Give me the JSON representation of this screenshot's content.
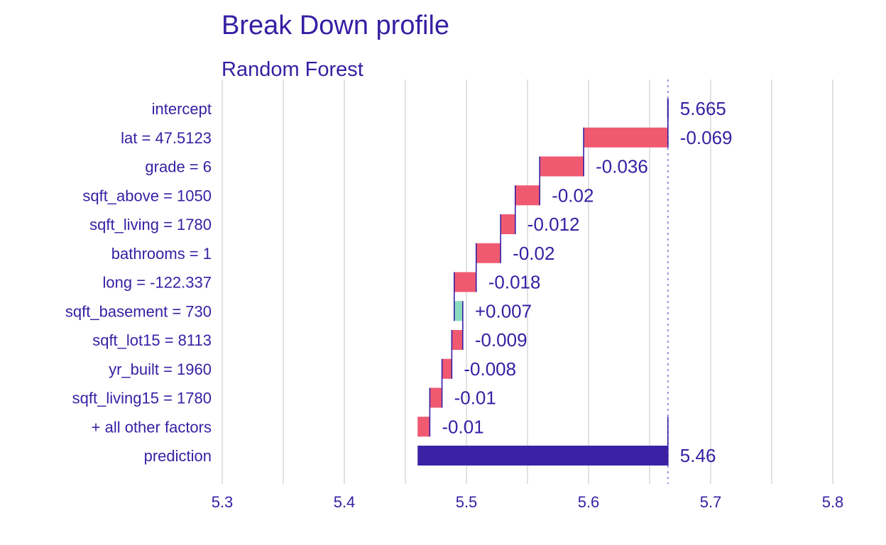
{
  "colors": {
    "text": "#371ea3",
    "negative": "#f05a71",
    "positive": "#8bdcbe",
    "prediction": "#371ea3",
    "grid": "#e2e2e2",
    "reference_line": "#9a90d6"
  },
  "chart_data": {
    "type": "bar",
    "title": "Break Down profile",
    "subtitle": "Random Forest",
    "xlabel": "",
    "ylabel": "",
    "xlim": [
      5.3,
      5.8
    ],
    "x_ticks": [
      5.3,
      5.4,
      5.5,
      5.6,
      5.7,
      5.8
    ],
    "x_tick_labels": [
      "5.3",
      "5.4",
      "5.5",
      "5.6",
      "5.7",
      "5.8"
    ],
    "grid": true,
    "reference_value": 5.665,
    "variables": [
      {
        "label": "intercept",
        "start": 5.665,
        "end": 5.665,
        "contribution": 5.665,
        "value_label": "5.665",
        "sign": "intercept"
      },
      {
        "label": "lat = 47.5123",
        "start": 5.665,
        "end": 5.596,
        "contribution": -0.069,
        "value_label": "-0.069",
        "sign": "negative"
      },
      {
        "label": "grade = 6",
        "start": 5.596,
        "end": 5.56,
        "contribution": -0.036,
        "value_label": "-0.036",
        "sign": "negative"
      },
      {
        "label": "sqft_above = 1050",
        "start": 5.56,
        "end": 5.54,
        "contribution": -0.02,
        "value_label": "-0.02",
        "sign": "negative"
      },
      {
        "label": "sqft_living = 1780",
        "start": 5.54,
        "end": 5.528,
        "contribution": -0.012,
        "value_label": "-0.012",
        "sign": "negative"
      },
      {
        "label": "bathrooms = 1",
        "start": 5.528,
        "end": 5.508,
        "contribution": -0.02,
        "value_label": "-0.02",
        "sign": "negative"
      },
      {
        "label": "long = -122.337",
        "start": 5.508,
        "end": 5.49,
        "contribution": -0.018,
        "value_label": "-0.018",
        "sign": "negative"
      },
      {
        "label": "sqft_basement = 730",
        "start": 5.49,
        "end": 5.497,
        "contribution": 0.007,
        "value_label": "+0.007",
        "sign": "positive"
      },
      {
        "label": "sqft_lot15 = 8113",
        "start": 5.497,
        "end": 5.488,
        "contribution": -0.009,
        "value_label": "-0.009",
        "sign": "negative"
      },
      {
        "label": "yr_built = 1960",
        "start": 5.488,
        "end": 5.48,
        "contribution": -0.008,
        "value_label": "-0.008",
        "sign": "negative"
      },
      {
        "label": "sqft_living15 = 1780",
        "start": 5.48,
        "end": 5.47,
        "contribution": -0.01,
        "value_label": "-0.01",
        "sign": "negative"
      },
      {
        "label": "+ all other factors",
        "start": 5.47,
        "end": 5.46,
        "contribution": -0.01,
        "value_label": "-0.01",
        "sign": "negative"
      },
      {
        "label": "prediction",
        "start": 5.665,
        "end": 5.46,
        "contribution": 5.46,
        "value_label": "5.46",
        "sign": "prediction"
      }
    ]
  }
}
